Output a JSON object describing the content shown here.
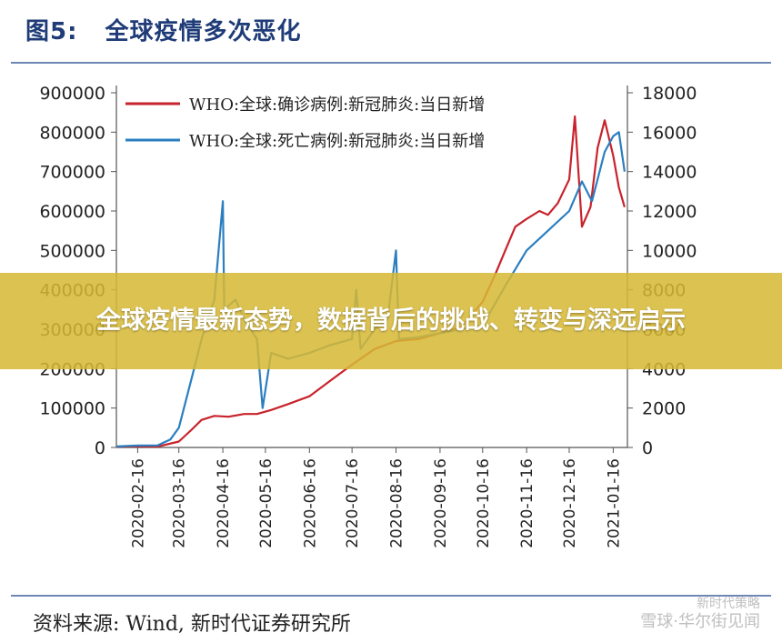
{
  "figure": {
    "label": "图5:",
    "title": "全球疫情多次恶化"
  },
  "banner": {
    "text": "全球疫情最新态势，数据背后的挑战、转变与深远启示"
  },
  "source": "资料来源: Wind, 新时代证券研究所",
  "watermark": {
    "line1": "新时代策略",
    "line2": "雪球·华尔街见闻"
  },
  "colors": {
    "cases": "#c8232c",
    "deaths": "#2b7fc0",
    "title": "#1f3c78",
    "banner": "#d6b834"
  },
  "chart_data": {
    "type": "line",
    "x_labels": [
      "2020-02-16",
      "2020-03-16",
      "2020-04-16",
      "2020-05-16",
      "2020-06-16",
      "2020-07-16",
      "2020-08-16",
      "2020-09-16",
      "2020-10-16",
      "2020-11-16",
      "2020-12-16",
      "2021-01-16"
    ],
    "x_range": [
      "2020-02-01",
      "2021-01-26"
    ],
    "y_left": {
      "ticks": [
        "0",
        "100000",
        "200000",
        "300000",
        "400000",
        "500000",
        "600000",
        "700000",
        "800000",
        "900000"
      ],
      "range": [
        0,
        900000
      ]
    },
    "y_right": {
      "ticks": [
        "0",
        "2000",
        "4000",
        "6000",
        "8000",
        "10000",
        "12000",
        "14000",
        "16000",
        "18000"
      ],
      "range": [
        0,
        18000
      ]
    },
    "grid": false,
    "legend_position": "top-left",
    "series": [
      {
        "name": "WHO:全球:确诊病例:新冠肺炎:当日新增",
        "axis": "left",
        "color": "#c8232c",
        "points": [
          [
            "2020-02-01",
            2000
          ],
          [
            "2020-02-16",
            3000
          ],
          [
            "2020-03-01",
            2000
          ],
          [
            "2020-03-16",
            15000
          ],
          [
            "2020-03-25",
            45000
          ],
          [
            "2020-04-01",
            70000
          ],
          [
            "2020-04-10",
            80000
          ],
          [
            "2020-04-20",
            78000
          ],
          [
            "2020-05-01",
            85000
          ],
          [
            "2020-05-10",
            85000
          ],
          [
            "2020-05-20",
            95000
          ],
          [
            "2020-06-01",
            110000
          ],
          [
            "2020-06-16",
            130000
          ],
          [
            "2020-07-01",
            170000
          ],
          [
            "2020-07-16",
            210000
          ],
          [
            "2020-08-01",
            250000
          ],
          [
            "2020-08-16",
            270000
          ],
          [
            "2020-09-01",
            275000
          ],
          [
            "2020-09-16",
            290000
          ],
          [
            "2020-10-01",
            305000
          ],
          [
            "2020-10-16",
            370000
          ],
          [
            "2020-10-25",
            440000
          ],
          [
            "2020-11-01",
            500000
          ],
          [
            "2020-11-08",
            560000
          ],
          [
            "2020-11-16",
            580000
          ],
          [
            "2020-11-25",
            600000
          ],
          [
            "2020-12-01",
            590000
          ],
          [
            "2020-12-08",
            620000
          ],
          [
            "2020-12-16",
            680000
          ],
          [
            "2020-12-20",
            840000
          ],
          [
            "2020-12-25",
            560000
          ],
          [
            "2020-12-31",
            610000
          ],
          [
            "2021-01-05",
            760000
          ],
          [
            "2021-01-10",
            830000
          ],
          [
            "2021-01-16",
            740000
          ],
          [
            "2021-01-20",
            660000
          ],
          [
            "2021-01-24",
            610000
          ]
        ]
      },
      {
        "name": "WHO:全球:死亡病例:新冠肺炎:当日新增",
        "axis": "right",
        "color": "#2b7fc0",
        "points": [
          [
            "2020-02-01",
            50
          ],
          [
            "2020-02-16",
            100
          ],
          [
            "2020-03-01",
            100
          ],
          [
            "2020-03-10",
            400
          ],
          [
            "2020-03-16",
            1000
          ],
          [
            "2020-03-25",
            3500
          ],
          [
            "2020-04-01",
            5500
          ],
          [
            "2020-04-10",
            7500
          ],
          [
            "2020-04-16",
            12500
          ],
          [
            "2020-04-17",
            7000
          ],
          [
            "2020-04-25",
            7500
          ],
          [
            "2020-05-01",
            6500
          ],
          [
            "2020-05-10",
            5500
          ],
          [
            "2020-05-14",
            2000
          ],
          [
            "2020-05-20",
            4800
          ],
          [
            "2020-06-01",
            4500
          ],
          [
            "2020-06-16",
            4800
          ],
          [
            "2020-07-01",
            5200
          ],
          [
            "2020-07-16",
            5500
          ],
          [
            "2020-07-19",
            8000
          ],
          [
            "2020-07-22",
            5000
          ],
          [
            "2020-08-01",
            6000
          ],
          [
            "2020-08-10",
            6500
          ],
          [
            "2020-08-16",
            10000
          ],
          [
            "2020-08-18",
            5500
          ],
          [
            "2020-09-01",
            5600
          ],
          [
            "2020-09-16",
            5800
          ],
          [
            "2020-10-01",
            6000
          ],
          [
            "2020-10-16",
            6200
          ],
          [
            "2020-11-01",
            8200
          ],
          [
            "2020-11-16",
            10000
          ],
          [
            "2020-12-01",
            11000
          ],
          [
            "2020-12-16",
            12000
          ],
          [
            "2020-12-25",
            13500
          ],
          [
            "2021-01-01",
            12500
          ],
          [
            "2021-01-10",
            15000
          ],
          [
            "2021-01-16",
            15800
          ],
          [
            "2021-01-20",
            16000
          ],
          [
            "2021-01-24",
            14000
          ]
        ]
      }
    ]
  }
}
